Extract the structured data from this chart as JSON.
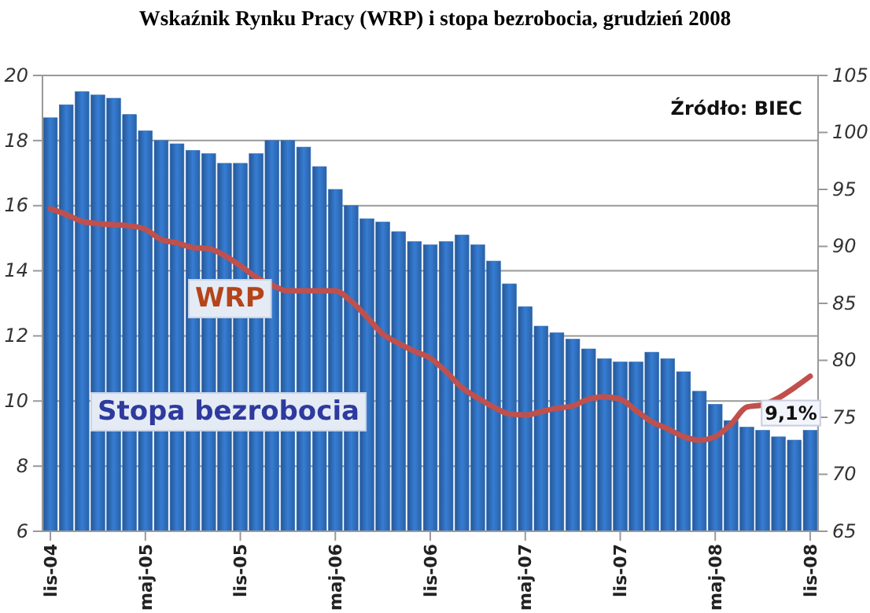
{
  "chart_data": {
    "type": "bar",
    "title": "Wskaźnik Rynku Pracy (WRP) i stopa bezrobocia, grudzień 2008",
    "categories": [
      "lis-04",
      null,
      null,
      null,
      null,
      null,
      "maj-05",
      null,
      null,
      null,
      null,
      null,
      "lis-05",
      null,
      null,
      null,
      null,
      null,
      "maj-06",
      null,
      null,
      null,
      null,
      null,
      "lis-06",
      null,
      null,
      null,
      null,
      null,
      "maj-07",
      null,
      null,
      null,
      null,
      null,
      "lis-07",
      null,
      null,
      null,
      null,
      null,
      "maj-08",
      null,
      null,
      null,
      null,
      null,
      "lis-08"
    ],
    "series": [
      {
        "name": "Stopa bezrobocia",
        "color": "#2f6cb8",
        "values": [
          18.7,
          19.1,
          19.5,
          19.4,
          19.3,
          18.8,
          18.3,
          18.0,
          17.9,
          17.7,
          17.6,
          17.3,
          17.3,
          17.6,
          18.0,
          18.0,
          17.8,
          17.2,
          16.5,
          16.0,
          15.6,
          15.5,
          15.2,
          14.9,
          14.8,
          14.9,
          15.1,
          14.8,
          14.3,
          13.6,
          12.9,
          12.3,
          12.1,
          11.9,
          11.6,
          11.3,
          11.2,
          11.2,
          11.5,
          11.3,
          10.9,
          10.3,
          9.9,
          9.4,
          9.2,
          9.1,
          8.9,
          8.8,
          9.1
        ],
        "value_labels": [
          null,
          null,
          null,
          null,
          null,
          null,
          null,
          null,
          null,
          null,
          null,
          null,
          null,
          null,
          null,
          null,
          null,
          null,
          null,
          null,
          null,
          null,
          null,
          null,
          null,
          null,
          null,
          null,
          null,
          null,
          null,
          null,
          null,
          null,
          null,
          null,
          null,
          null,
          null,
          null,
          null,
          null,
          null,
          null,
          null,
          null,
          null,
          null,
          "9,1%"
        ]
      },
      {
        "name": "WRP",
        "type": "line",
        "axis": "y2",
        "color": "#c0504d",
        "values": [
          93.3,
          92.8,
          92.2,
          92.0,
          91.9,
          91.8,
          91.5,
          90.6,
          90.3,
          89.9,
          89.8,
          89.2,
          88.3,
          87.3,
          86.6,
          86.1,
          86.1,
          86.1,
          86.1,
          85.2,
          83.8,
          82.3,
          81.5,
          80.8,
          80.2,
          79.0,
          77.6,
          76.7,
          75.9,
          75.3,
          75.2,
          75.5,
          75.8,
          76.0,
          76.6,
          76.8,
          76.6,
          75.6,
          74.6,
          74.0,
          73.3,
          73.0,
          73.3,
          74.4,
          75.9,
          76.1,
          76.7,
          77.6,
          78.6
        ]
      }
    ],
    "ylim": [
      6,
      20
    ],
    "yticks": [
      6,
      8,
      10,
      12,
      14,
      16,
      18,
      20
    ],
    "y2lim": [
      65,
      105
    ],
    "y2ticks": [
      65,
      70,
      75,
      80,
      85,
      90,
      95,
      100,
      105
    ],
    "grid": "y",
    "marker": "none",
    "line_style": "solid",
    "annotations": [
      "Źródło: BIEC"
    ]
  }
}
